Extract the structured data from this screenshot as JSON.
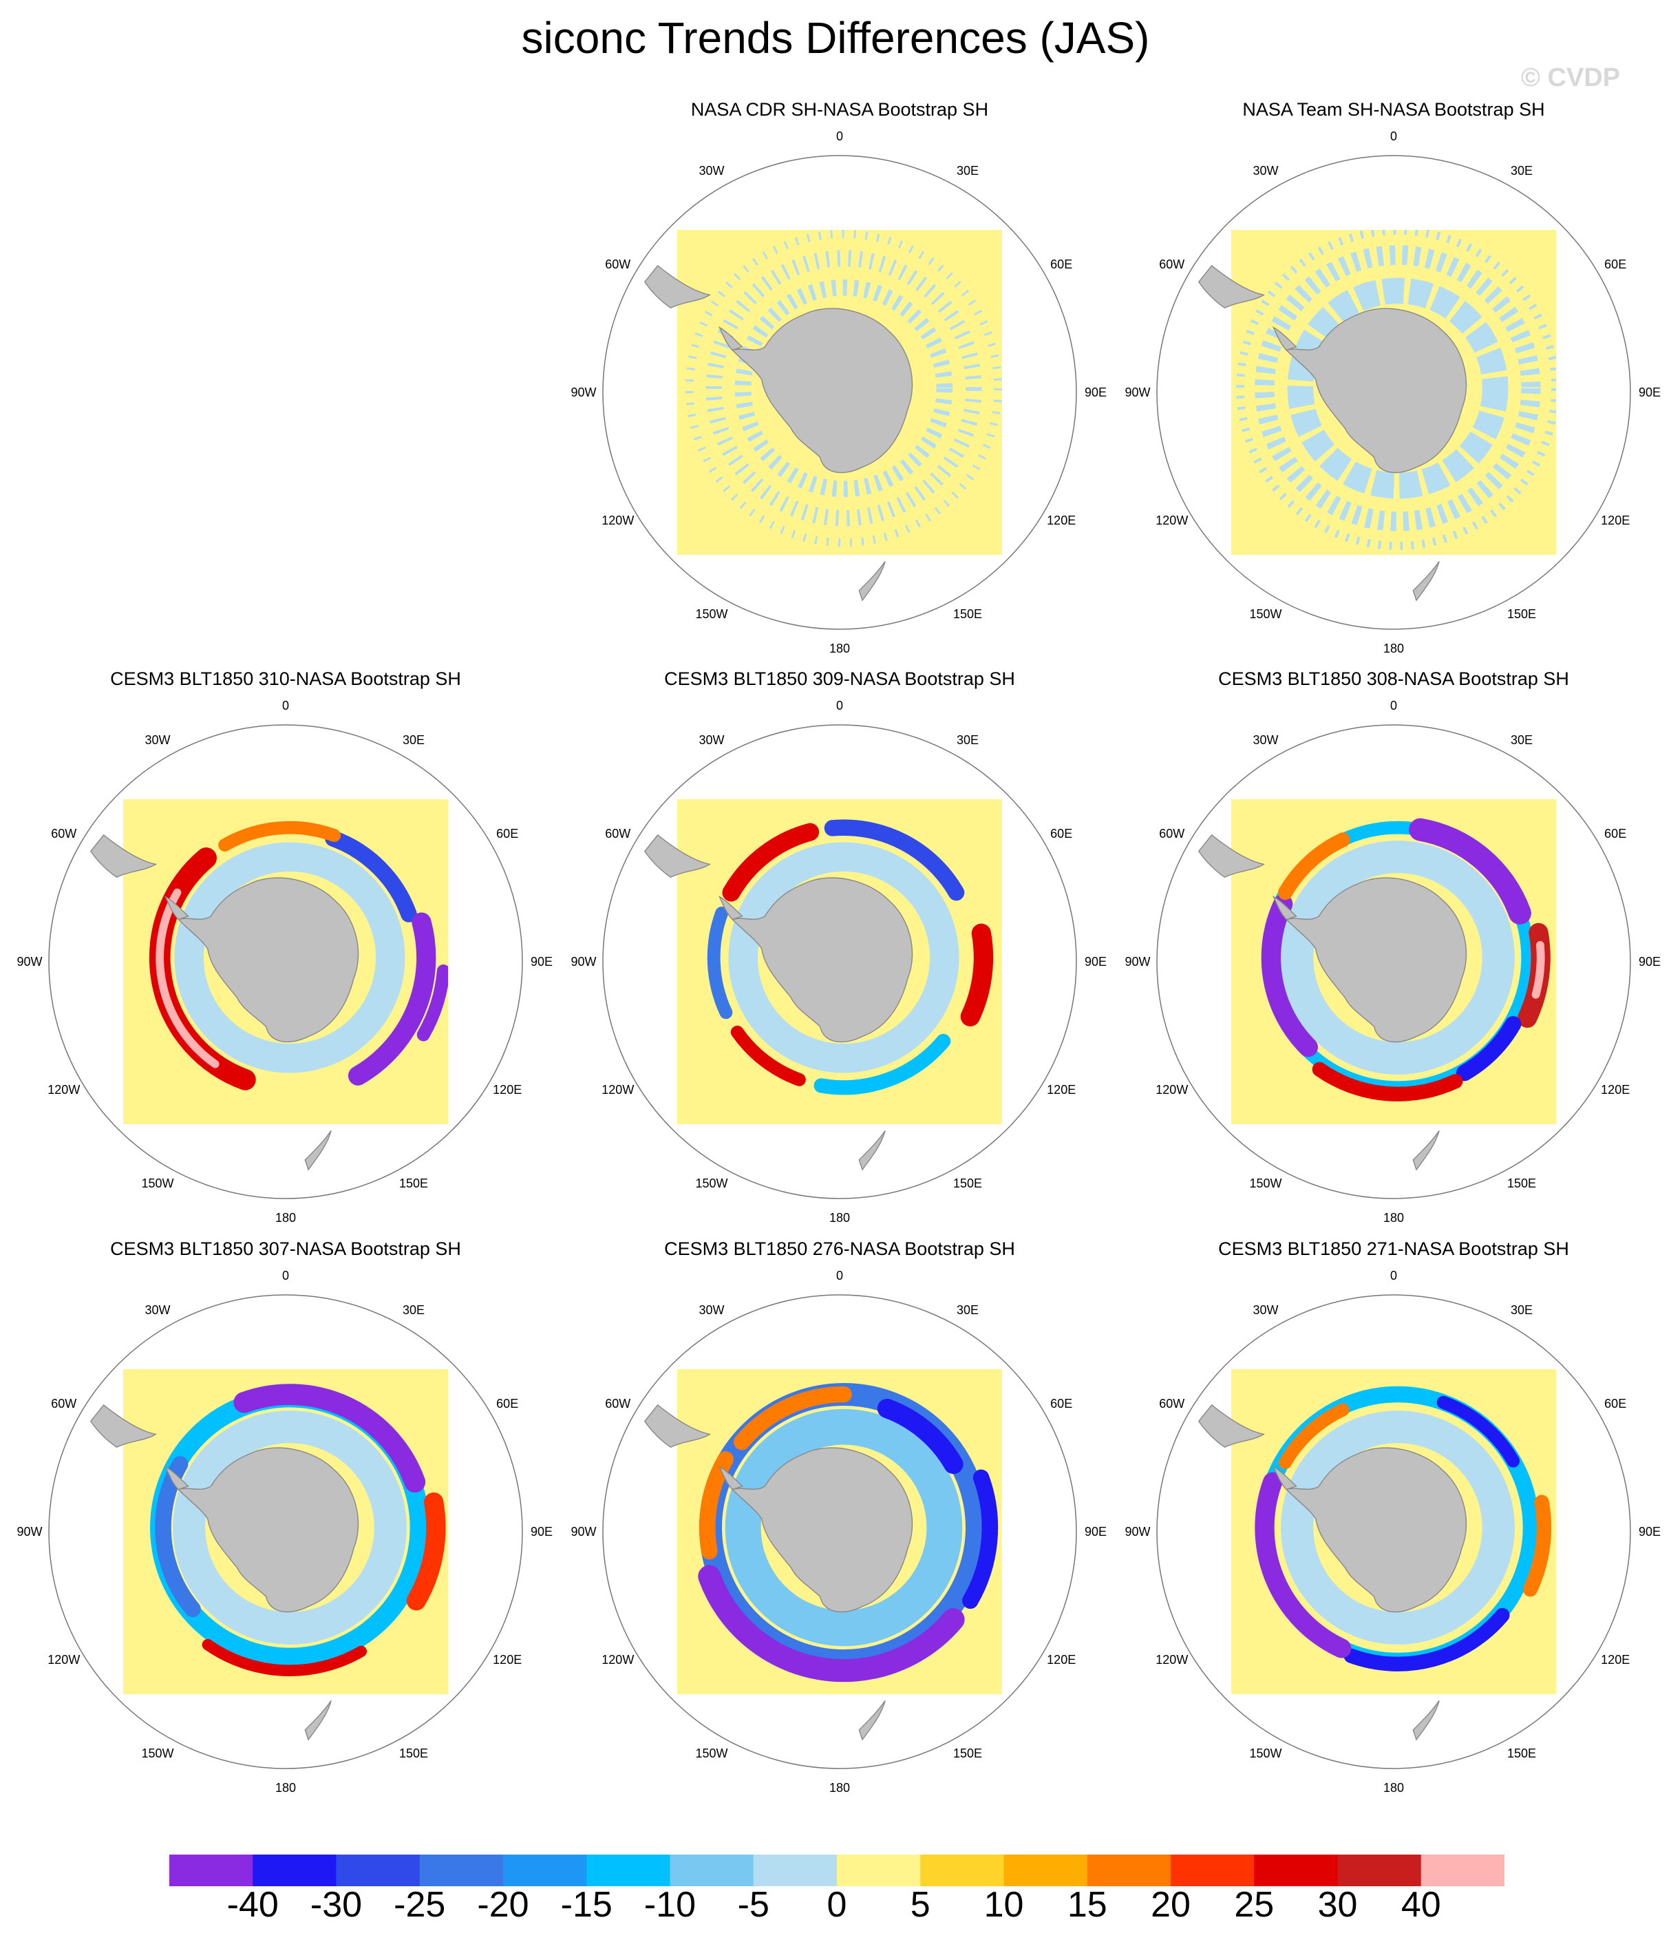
{
  "title": "siconc Trends Differences (JAS)",
  "watermark": "© CVDP",
  "panels": [
    {
      "title": "NASA CDR SH-NASA Bootstrap SH",
      "style": "obs-cdr"
    },
    {
      "title": "NASA Team SH-NASA Bootstrap SH",
      "style": "obs-team"
    },
    {
      "title": "CESM3 BLT1850 310-NASA Bootstrap SH",
      "style": "m310"
    },
    {
      "title": "CESM3 BLT1850 309-NASA Bootstrap SH",
      "style": "m309"
    },
    {
      "title": "CESM3 BLT1850 308-NASA Bootstrap SH",
      "style": "m308"
    },
    {
      "title": "CESM3 BLT1850 307-NASA Bootstrap SH",
      "style": "m307"
    },
    {
      "title": "CESM3 BLT1850 276-NASA Bootstrap SH",
      "style": "m276"
    },
    {
      "title": "CESM3 BLT1850 271-NASA Bootstrap SH",
      "style": "m271"
    }
  ],
  "lon_labels": [
    "0",
    "30E",
    "60E",
    "90E",
    "120E",
    "150E",
    "180",
    "150W",
    "120W",
    "90W",
    "60W",
    "30W"
  ],
  "colorbar": {
    "colors": [
      "#8a2be2",
      "#1e18f5",
      "#2f4ae8",
      "#3a78e8",
      "#1e96f5",
      "#00c0ff",
      "#78c8f2",
      "#b4ddf2",
      "#fff58c",
      "#ffd42a",
      "#ffae00",
      "#ff7b00",
      "#ff3300",
      "#e00000",
      "#c81e1e",
      "#ffb4b4"
    ],
    "labels": [
      "-40",
      "-30",
      "-25",
      "-20",
      "-15",
      "-10",
      "-5",
      "0",
      "5",
      "10",
      "15",
      "20",
      "25",
      "30",
      "40"
    ]
  },
  "land_color": "#c0c0c0",
  "ocean_background": "#fff58c"
}
